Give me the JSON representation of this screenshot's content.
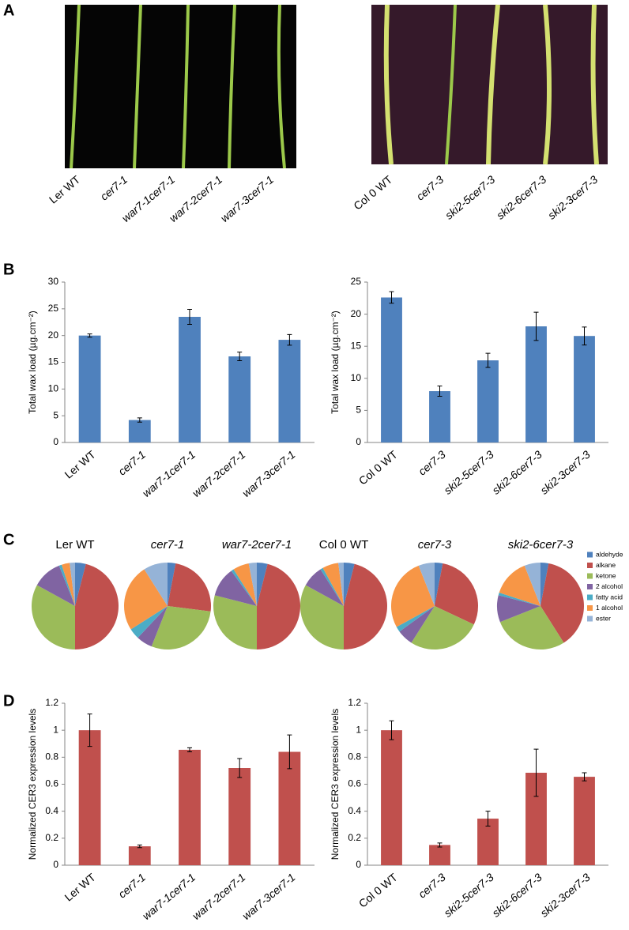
{
  "panel_labels": [
    "A",
    "B",
    "C",
    "D"
  ],
  "photos": [
    {
      "labels": [
        "Ler WT",
        "cer7-1",
        "war7-1cer7-1",
        "war7-2cer7-1",
        "war7-3cer7-1"
      ]
    },
    {
      "labels": [
        "Col 0 WT",
        "cer7-3",
        "ski2-5cer7-3",
        "ski2-6cer7-3",
        "ski2-3cer7-3"
      ]
    }
  ],
  "chart_data": [
    {
      "type": "bar",
      "ylabel": "Total wax load (µg.cm⁻²)",
      "color": "#4f81bd",
      "categories": [
        "Ler WT",
        "cer7-1",
        "war7-1cer7-1",
        "war7-2cer7-1",
        "war7-3cer7-1"
      ],
      "values": [
        20,
        4.2,
        23.5,
        16.1,
        19.2
      ],
      "errors": [
        0.3,
        0.4,
        1.4,
        0.8,
        1.0
      ],
      "ylim": [
        0,
        30
      ],
      "yticks": [
        0,
        5,
        10,
        15,
        20,
        25,
        30
      ]
    },
    {
      "type": "bar",
      "ylabel": "Total wax load (µg.cm⁻²)",
      "color": "#4f81bd",
      "categories": [
        "Col 0 WT",
        "cer7-3",
        "ski2-5cer7-3",
        "ski2-6cer7-3",
        "ski2-3cer7-3"
      ],
      "values": [
        22.6,
        8.0,
        12.8,
        18.1,
        16.6
      ],
      "errors": [
        0.9,
        0.8,
        1.1,
        2.2,
        1.4
      ],
      "ylim": [
        0,
        25
      ],
      "yticks": [
        0,
        5,
        10,
        15,
        20,
        25
      ]
    },
    {
      "type": "pie",
      "categories": [
        "aldehyde",
        "alkane",
        "ketone",
        "2 alcohol",
        "fatty acid",
        "1 alcohol",
        "ester"
      ],
      "colors": [
        "#4f81bd",
        "#c0504d",
        "#9bbb59",
        "#8064a2",
        "#4bacc6",
        "#f79646",
        "#95b3d7"
      ],
      "series": [
        {
          "name": "Ler WT",
          "values": [
            4,
            46,
            33,
            11,
            1,
            3,
            2
          ]
        },
        {
          "name": "cer7-1",
          "values": [
            3,
            24,
            29,
            6,
            4,
            25,
            9
          ]
        },
        {
          "name": "war7-2cer7-1",
          "values": [
            4,
            46,
            29,
            11,
            1,
            6,
            3
          ]
        },
        {
          "name": "Col 0 WT",
          "values": [
            4,
            46,
            33,
            8,
            1,
            6,
            2
          ]
        },
        {
          "name": "cer7-3",
          "values": [
            3,
            29,
            27,
            6,
            2,
            27,
            6
          ]
        },
        {
          "name": "ski2-6cer7-3",
          "values": [
            3,
            38,
            28,
            10,
            1,
            14,
            6
          ]
        }
      ]
    },
    {
      "type": "bar",
      "ylabel": "Normalized CER3 expression levels",
      "color": "#c0504d",
      "categories": [
        "Ler WT",
        "cer7-1",
        "war7-1cer7-1",
        "war7-2cer7-1",
        "war7-3cer7-1"
      ],
      "values": [
        1.0,
        0.14,
        0.855,
        0.72,
        0.84
      ],
      "errors": [
        0.12,
        0.01,
        0.015,
        0.07,
        0.125
      ],
      "ylim": [
        0,
        1.2
      ],
      "yticks": [
        0,
        0.2,
        0.4,
        0.6,
        0.8,
        1,
        1.2
      ]
    },
    {
      "type": "bar",
      "ylabel": "Normalized CER3 expression levels",
      "color": "#c0504d",
      "categories": [
        "Col 0 WT",
        "cer7-3",
        "ski2-5cer7-3",
        "ski2-6cer7-3",
        "ski2-3cer7-3"
      ],
      "values": [
        1.0,
        0.15,
        0.345,
        0.685,
        0.655
      ],
      "errors": [
        0.07,
        0.015,
        0.055,
        0.175,
        0.03
      ],
      "ylim": [
        0,
        1.2
      ],
      "yticks": [
        0,
        0.2,
        0.4,
        0.6,
        0.8,
        1,
        1.2
      ]
    }
  ]
}
